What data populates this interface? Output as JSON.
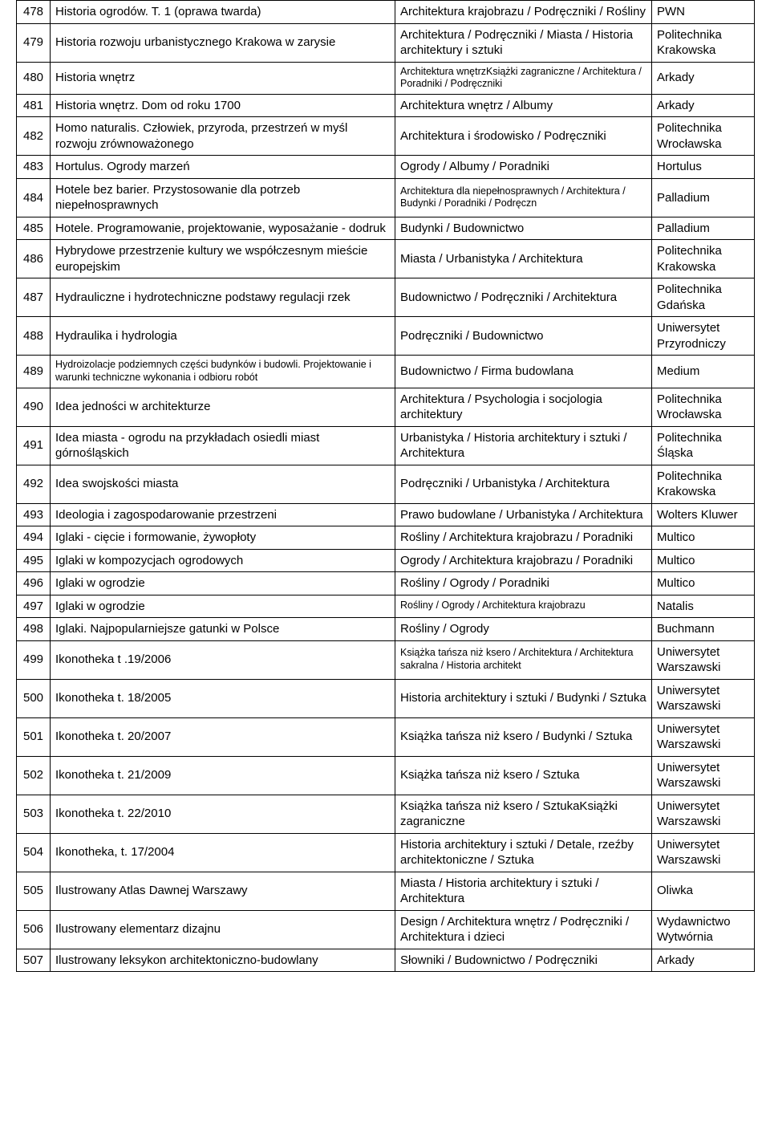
{
  "table": {
    "columns": [
      "num",
      "title",
      "categories",
      "publisher"
    ],
    "rows": [
      {
        "num": "478",
        "title": "Historia ogrodów. T. 1 (oprawa twarda)",
        "categories": "Architektura krajobrazu  /  Podręczniki  /  Rośliny",
        "publisher": "PWN"
      },
      {
        "num": "479",
        "title": "Historia rozwoju urbanistycznego Krakowa w zarysie",
        "categories": "Architektura  /  Podręczniki  /  Miasta  /  Historia architektury i sztuki",
        "publisher": "Politechnika Krakowska"
      },
      {
        "num": "480",
        "title": "Historia wnętrz",
        "categories": "Architektura wnętrzKsiążki zagraniczne  /  Architektura  /  Poradniki  /  Podręczniki",
        "publisher": "Arkady",
        "catSmall": true
      },
      {
        "num": "481",
        "title": "Historia wnętrz. Dom od roku 1700",
        "categories": "Architektura wnętrz  /  Albumy",
        "publisher": "Arkady"
      },
      {
        "num": "482",
        "title": "Homo naturalis. Człowiek, przyroda, przestrzeń w myśl rozwoju zrównoważonego",
        "categories": "Architektura i środowisko  /  Podręczniki",
        "publisher": "Politechnika Wrocławska"
      },
      {
        "num": "483",
        "title": "Hortulus. Ogrody marzeń",
        "categories": "Ogrody  /  Albumy  /  Poradniki",
        "publisher": "Hortulus"
      },
      {
        "num": "484",
        "title": "Hotele bez barier. Przystosowanie dla potrzeb niepełnosprawnych",
        "categories": "Architektura dla niepełnosprawnych  /  Architektura  /  Budynki  /  Poradniki  /  Podręczn",
        "publisher": "Palladium",
        "catSmall": true
      },
      {
        "num": "485",
        "title": "Hotele. Programowanie, projektowanie, wyposażanie  - dodruk",
        "categories": "Budynki  /  Budownictwo",
        "publisher": "Palladium"
      },
      {
        "num": "486",
        "title": "Hybrydowe przestrzenie kultury we współczesnym mieście europejskim",
        "categories": "Miasta  /  Urbanistyka  /  Architektura",
        "publisher": "Politechnika Krakowska"
      },
      {
        "num": "487",
        "title": "Hydrauliczne i hydrotechniczne podstawy regulacji rzek",
        "categories": "Budownictwo  /  Podręczniki  /  Architektura",
        "publisher": "Politechnika Gdańska"
      },
      {
        "num": "488",
        "title": "Hydraulika i hydrologia",
        "categories": "Podręczniki  /  Budownictwo",
        "publisher": "Uniwersytet Przyrodniczy"
      },
      {
        "num": "489",
        "title": "Hydroizolacje podziemnych części budynków i budowli. Projektowanie i warunki techniczne wykonania i odbioru robót",
        "categories": "Budownictwo  /  Firma budowlana",
        "publisher": "Medium",
        "titleSmall": true
      },
      {
        "num": "490",
        "title": "Idea jedności w architekturze",
        "categories": "Architektura  /  Psychologia i socjologia architektury",
        "publisher": "Politechnika Wrocławska"
      },
      {
        "num": "491",
        "title": "Idea miasta - ogrodu na przykładach osiedli miast górnośląskich",
        "categories": "Urbanistyka  /  Historia architektury i sztuki  /  Architektura",
        "publisher": "Politechnika Śląska"
      },
      {
        "num": "492",
        "title": "Idea swojskości miasta",
        "categories": "Podręczniki  /  Urbanistyka  /  Architektura",
        "publisher": "Politechnika Krakowska"
      },
      {
        "num": "493",
        "title": "Ideologia i zagospodarowanie przestrzeni",
        "categories": "Prawo budowlane  /  Urbanistyka  /  Architektura",
        "publisher": "Wolters Kluwer"
      },
      {
        "num": "494",
        "title": "Iglaki - cięcie i formowanie, żywopłoty",
        "categories": "Rośliny  /  Architektura krajobrazu  /  Poradniki",
        "publisher": "Multico"
      },
      {
        "num": "495",
        "title": "Iglaki w kompozycjach ogrodowych",
        "categories": "Ogrody  /  Architektura krajobrazu  /  Poradniki",
        "publisher": "Multico"
      },
      {
        "num": "496",
        "title": "Iglaki w ogrodzie",
        "categories": "Rośliny  /  Ogrody  /  Poradniki",
        "publisher": "Multico"
      },
      {
        "num": "497",
        "title": "Iglaki w ogrodzie",
        "categories": "Rośliny  /  Ogrody  /  Architektura krajobrazu",
        "publisher": "Natalis",
        "catSmall": true
      },
      {
        "num": "498",
        "title": "Iglaki. Najpopularniejsze gatunki w Polsce",
        "categories": "Rośliny  /  Ogrody",
        "publisher": "Buchmann"
      },
      {
        "num": "499",
        "title": "Ikonotheka t .19/2006",
        "categories": "Książka tańsza niż ksero  /  Architektura  /  Architektura sakralna  /  Historia architekt",
        "publisher": "Uniwersytet Warszawski",
        "catSmall": true
      },
      {
        "num": "500",
        "title": "Ikonotheka t. 18/2005",
        "categories": "Historia architektury i sztuki  /  Budynki  /  Sztuka",
        "publisher": "Uniwersytet Warszawski"
      },
      {
        "num": "501",
        "title": "Ikonotheka t. 20/2007",
        "categories": "Książka tańsza niż ksero  /  Budynki  /  Sztuka",
        "publisher": "Uniwersytet Warszawski"
      },
      {
        "num": "502",
        "title": "Ikonotheka t. 21/2009",
        "categories": "Książka tańsza niż ksero  /  Sztuka",
        "publisher": "Uniwersytet Warszawski"
      },
      {
        "num": "503",
        "title": "Ikonotheka t. 22/2010",
        "categories": "Książka tańsza niż ksero  /  SztukaKsiążki zagraniczne",
        "publisher": "Uniwersytet Warszawski"
      },
      {
        "num": "504",
        "title": "Ikonotheka, t. 17/2004",
        "categories": "Historia architektury i sztuki  /  Detale, rzeźby architektoniczne  /  Sztuka",
        "publisher": "Uniwersytet Warszawski"
      },
      {
        "num": "505",
        "title": "Ilustrowany Atlas Dawnej Warszawy",
        "categories": "Miasta  /  Historia architektury i sztuki  /  Architektura",
        "publisher": "Oliwka"
      },
      {
        "num": "506",
        "title": "Ilustrowany elementarz dizajnu",
        "categories": "Design  /  Architektura wnętrz  /  Podręczniki  /  Architektura i dzieci",
        "publisher": "Wydawnictwo Wytwórnia"
      },
      {
        "num": "507",
        "title": "Ilustrowany leksykon architektoniczno-budowlany",
        "categories": "Słowniki  /  Budownictwo  /  Podręczniki",
        "publisher": "Arkady"
      }
    ]
  },
  "style": {
    "borderColor": "#000000",
    "backgroundColor": "#ffffff",
    "textColor": "#000000",
    "baseFontSize": 15,
    "smallFontSize": 12.5
  }
}
